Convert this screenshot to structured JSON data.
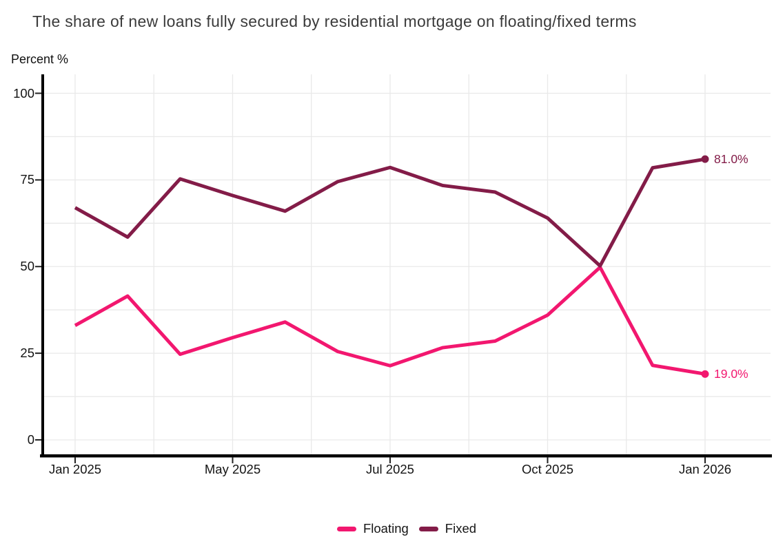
{
  "title": "The share of new loans fully secured by residential mortgage on floating/fixed terms",
  "y_axis_title": "Percent %",
  "chart_data": {
    "type": "line",
    "n_points": 13,
    "x_tick_labels": [
      "Jan 2025",
      "May 2025",
      "Jul 2025",
      "Oct 2025",
      "Jan 2026"
    ],
    "x_tick_indices": [
      0,
      3,
      6,
      9,
      12
    ],
    "y_ticks": [
      0,
      25,
      50,
      75,
      100
    ],
    "ylim": [
      0,
      100
    ],
    "grid": "on",
    "grid_color": "#e9e9e9",
    "axis_color": "#000000",
    "legend_position": "bottom",
    "series": [
      {
        "name": "Floating",
        "color": "#F2176F",
        "values": [
          33,
          41.5,
          24.7,
          29.5,
          34,
          25.5,
          21.4,
          26.6,
          28.5,
          36,
          49.8,
          21.5,
          19
        ],
        "end_label": "19.0%"
      },
      {
        "name": "Fixed",
        "color": "#831C48",
        "values": [
          67,
          58.5,
          75.3,
          70.5,
          66,
          74.5,
          78.6,
          73.4,
          71.5,
          64,
          50.2,
          78.5,
          81
        ],
        "end_label": "81.0%"
      }
    ]
  }
}
